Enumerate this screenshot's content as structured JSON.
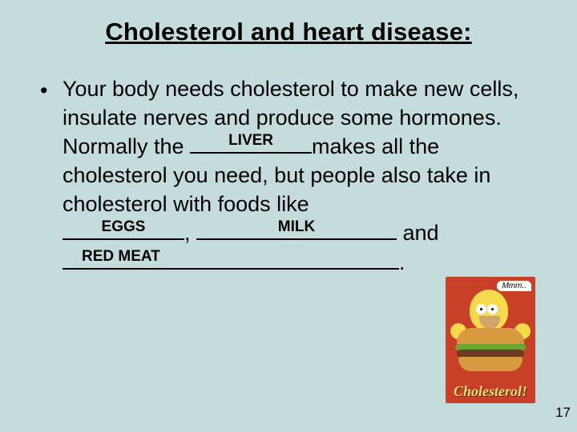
{
  "title": "Cholesterol and heart disease:",
  "bullet_char": "•",
  "paragraph": {
    "part1": "Your body needs cholesterol to make new cells, insulate nerves and produce some hormones. Normally the ",
    "blank1_fill": "LIVER",
    "part2": "makes all the cholesterol you need, but people also take in cholesterol with foods like ",
    "blank2_fill": "EGGS",
    "sep1": ", ",
    "blank3_fill": "MILK",
    "sep2": " and ",
    "blank4_fill": "RED MEAT",
    "end": "."
  },
  "cartoon": {
    "speech": "Mmm..",
    "caption": "Cholesterol!",
    "bg_color": "#c94028",
    "skin_color": "#f7d94c",
    "bun_color": "#d79a3e",
    "lettuce_color": "#6ea434",
    "patty_color": "#6b3a1f",
    "logo_color": "#f5e46c"
  },
  "page_number": "17",
  "colors": {
    "slide_bg": "#c5dcdc",
    "text": "#000000"
  }
}
